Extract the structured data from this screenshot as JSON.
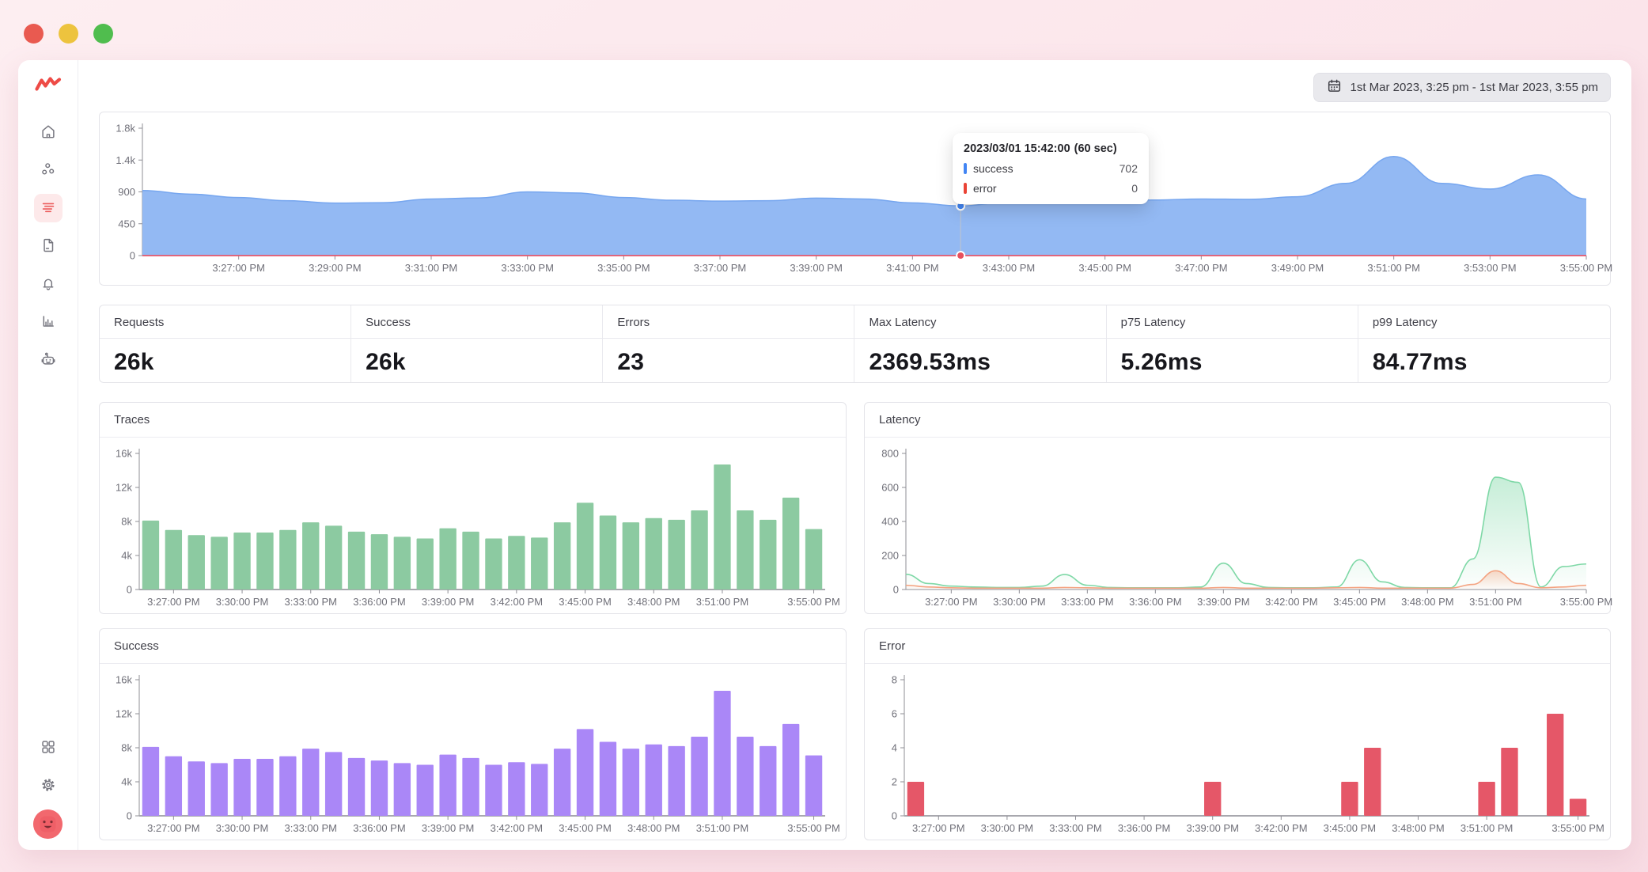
{
  "window_controls": {
    "buttons": [
      "close",
      "minimize",
      "maximize"
    ]
  },
  "topbar": {
    "date_range": "1st Mar 2023, 3:25 pm - 1st Mar 2023, 3:55 pm",
    "calendar_icon": "calendar-icon"
  },
  "sidebar": {
    "logo_icon": "middleware-zigzag-logo",
    "items": [
      {
        "icon": "home-icon",
        "active": false
      },
      {
        "icon": "infrastructure-nodes-icon",
        "active": false
      },
      {
        "icon": "traces-list-icon",
        "active": true
      },
      {
        "icon": "logs-document-icon",
        "active": false
      },
      {
        "icon": "alerts-bell-icon",
        "active": false
      },
      {
        "icon": "reports-bar-chart-icon",
        "active": false
      },
      {
        "icon": "assistant-bot-icon",
        "active": false
      }
    ],
    "bottom": [
      {
        "icon": "apps-grid-icon"
      },
      {
        "icon": "settings-gear-icon"
      },
      {
        "icon": "user-avatar"
      }
    ],
    "accent_color": "#ec5b5b",
    "active_bg": "#fde9ea"
  },
  "tooltip": {
    "title": "2023/03/01 15:42:00",
    "interval": "(60 sec)",
    "rows": [
      {
        "label": "success",
        "value": "702",
        "color": "#4285f4"
      },
      {
        "label": "error",
        "value": "0",
        "color": "#ea4335"
      }
    ]
  },
  "stats": {
    "cells": [
      {
        "label": "Requests",
        "value": "26k"
      },
      {
        "label": "Success",
        "value": "26k"
      },
      {
        "label": "Errors",
        "value": "23"
      },
      {
        "label": "Max Latency",
        "value": "2369.53ms"
      },
      {
        "label": "p75 Latency",
        "value": "5.26ms"
      },
      {
        "label": "p99 Latency",
        "value": "84.77ms"
      }
    ]
  },
  "chart_data": [
    {
      "key": "requests-timeseries",
      "type": "area",
      "interval": "60 sec",
      "x_start": "3:25:00 PM",
      "x_end": "3:55:00 PM",
      "ymax": 1800,
      "yticks": [
        [
          0,
          "0"
        ],
        [
          450,
          "450"
        ],
        [
          900,
          "900"
        ],
        [
          1350,
          "1.4k"
        ],
        [
          1800,
          "1.8k"
        ]
      ],
      "x_ticks": [
        [
          2,
          "3:27:00 PM"
        ],
        [
          4,
          "3:29:00 PM"
        ],
        [
          6,
          "3:31:00 PM"
        ],
        [
          8,
          "3:33:00 PM"
        ],
        [
          10,
          "3:35:00 PM"
        ],
        [
          12,
          "3:37:00 PM"
        ],
        [
          14,
          "3:39:00 PM"
        ],
        [
          16,
          "3:41:00 PM"
        ],
        [
          18,
          "3:43:00 PM"
        ],
        [
          20,
          "3:45:00 PM"
        ],
        [
          22,
          "3:47:00 PM"
        ],
        [
          24,
          "3:49:00 PM"
        ],
        [
          26,
          "3:51:00 PM"
        ],
        [
          28,
          "3:53:00 PM"
        ],
        [
          30,
          "3:55:00 PM"
        ]
      ],
      "series": [
        {
          "name": "success",
          "stroke": "#76a6ef",
          "fill": "#8db5f2",
          "fill_opacity": 0.95,
          "width": 1.5,
          "values": [
            920,
            868,
            820,
            775,
            742,
            748,
            800,
            815,
            900,
            885,
            820,
            782,
            770,
            775,
            812,
            800,
            745,
            702,
            758,
            768,
            778,
            786,
            800,
            795,
            832,
            1020,
            1400,
            1020,
            940,
            1140,
            800
          ]
        },
        {
          "name": "error",
          "stroke": "#e5566b",
          "width": 1.8,
          "values": [
            0,
            0,
            0,
            0,
            0,
            0,
            0,
            0,
            0,
            0,
            0,
            0,
            0,
            0,
            0,
            0,
            0,
            0,
            0,
            0,
            0,
            0,
            0,
            0,
            0,
            0,
            0,
            0,
            0,
            0,
            0
          ]
        }
      ],
      "marker": {
        "index": 17,
        "values": [
          702,
          0
        ],
        "colors": [
          "#4285f4",
          "#e8505e"
        ]
      },
      "ml": 52,
      "mr": 20
    },
    {
      "key": "traces",
      "type": "bar",
      "title": "Traces",
      "color": "#8ccaa1",
      "x_start": "3:26 PM",
      "interval": "1 min",
      "ymax": 16000,
      "yticks": [
        [
          0,
          "0"
        ],
        [
          4000,
          "4k"
        ],
        [
          8000,
          "8k"
        ],
        [
          12000,
          "12k"
        ],
        [
          16000,
          "16k"
        ]
      ],
      "x_ticks": [
        [
          1,
          "3:27:00 PM"
        ],
        [
          4,
          "3:30:00 PM"
        ],
        [
          7,
          "3:33:00 PM"
        ],
        [
          10,
          "3:36:00 PM"
        ],
        [
          13,
          "3:39:00 PM"
        ],
        [
          16,
          "3:42:00 PM"
        ],
        [
          19,
          "3:45:00 PM"
        ],
        [
          22,
          "3:48:00 PM"
        ],
        [
          25,
          "3:51:00 PM"
        ],
        [
          29,
          "3:55:00 PM"
        ]
      ],
      "values": [
        8100,
        7000,
        6400,
        6200,
        6700,
        6700,
        7000,
        7900,
        7500,
        6800,
        6500,
        6200,
        6000,
        7200,
        6800,
        6000,
        6300,
        6100,
        7900,
        10200,
        8700,
        7900,
        8400,
        8200,
        9300,
        14700,
        9300,
        8200,
        10800,
        7100
      ]
    },
    {
      "key": "latency",
      "type": "area",
      "title": "Latency",
      "x_start": "3:25 PM",
      "interval": "1 min",
      "ymax": 800,
      "yticks": [
        [
          0,
          "0"
        ],
        [
          200,
          "200"
        ],
        [
          400,
          "400"
        ],
        [
          600,
          "600"
        ],
        [
          800,
          "800"
        ]
      ],
      "x_ticks": [
        [
          2,
          "3:27:00 PM"
        ],
        [
          5,
          "3:30:00 PM"
        ],
        [
          8,
          "3:33:00 PM"
        ],
        [
          11,
          "3:36:00 PM"
        ],
        [
          14,
          "3:39:00 PM"
        ],
        [
          17,
          "3:42:00 PM"
        ],
        [
          20,
          "3:45:00 PM"
        ],
        [
          23,
          "3:48:00 PM"
        ],
        [
          26,
          "3:51:00 PM"
        ],
        [
          30,
          "3:55:00 PM"
        ]
      ],
      "series": [
        {
          "name": "p99",
          "stroke": "#7ed8a6",
          "fill": "#8ddcb0",
          "fill_opacity": 0.5,
          "gradient": true,
          "width": 1.6,
          "values": [
            90,
            35,
            20,
            15,
            12,
            12,
            20,
            88,
            25,
            12,
            10,
            10,
            10,
            15,
            155,
            35,
            12,
            10,
            10,
            15,
            175,
            45,
            12,
            10,
            10,
            180,
            660,
            630,
            15,
            135,
            150
          ]
        },
        {
          "name": "p75",
          "stroke": "#f4a381",
          "fill": "#f6a986",
          "fill_opacity": 0.45,
          "gradient": true,
          "width": 1.6,
          "values": [
            25,
            15,
            10,
            8,
            8,
            8,
            8,
            12,
            10,
            8,
            8,
            8,
            8,
            8,
            12,
            8,
            8,
            8,
            8,
            10,
            12,
            8,
            8,
            8,
            8,
            30,
            110,
            35,
            10,
            15,
            25
          ]
        }
      ],
      "ml": 48,
      "mr": 18
    },
    {
      "key": "success",
      "type": "bar",
      "title": "Success",
      "color": "#aa87f7",
      "x_start": "3:26 PM",
      "interval": "1 min",
      "ymax": 16000,
      "yticks": [
        [
          0,
          "0"
        ],
        [
          4000,
          "4k"
        ],
        [
          8000,
          "8k"
        ],
        [
          12000,
          "12k"
        ],
        [
          16000,
          "16k"
        ]
      ],
      "x_ticks": [
        [
          1,
          "3:27:00 PM"
        ],
        [
          4,
          "3:30:00 PM"
        ],
        [
          7,
          "3:33:00 PM"
        ],
        [
          10,
          "3:36:00 PM"
        ],
        [
          13,
          "3:39:00 PM"
        ],
        [
          16,
          "3:42:00 PM"
        ],
        [
          19,
          "3:45:00 PM"
        ],
        [
          22,
          "3:48:00 PM"
        ],
        [
          25,
          "3:51:00 PM"
        ],
        [
          29,
          "3:55:00 PM"
        ]
      ],
      "values": [
        8100,
        7000,
        6400,
        6200,
        6700,
        6700,
        7000,
        7900,
        7500,
        6800,
        6500,
        6200,
        6000,
        7200,
        6800,
        6000,
        6300,
        6100,
        7900,
        10200,
        8700,
        7900,
        8400,
        8200,
        9300,
        14700,
        9300,
        8200,
        10800,
        7100
      ]
    },
    {
      "key": "error",
      "type": "bar",
      "title": "Error",
      "color": "#e55768",
      "x_start": "3:26 PM",
      "interval": "1 min",
      "ymax": 8,
      "yticks": [
        [
          0,
          "0"
        ],
        [
          2,
          "2"
        ],
        [
          4,
          "4"
        ],
        [
          6,
          "6"
        ],
        [
          8,
          "8"
        ]
      ],
      "x_ticks": [
        [
          1,
          "3:27:00 PM"
        ],
        [
          4,
          "3:30:00 PM"
        ],
        [
          7,
          "3:33:00 PM"
        ],
        [
          10,
          "3:36:00 PM"
        ],
        [
          13,
          "3:39:00 PM"
        ],
        [
          16,
          "3:42:00 PM"
        ],
        [
          19,
          "3:45:00 PM"
        ],
        [
          22,
          "3:48:00 PM"
        ],
        [
          25,
          "3:51:00 PM"
        ],
        [
          29,
          "3:55:00 PM"
        ]
      ],
      "values": [
        2,
        0,
        0,
        0,
        0,
        0,
        0,
        0,
        0,
        0,
        0,
        0,
        0,
        2,
        0,
        0,
        0,
        0,
        0,
        2,
        4,
        0,
        0,
        0,
        0,
        2,
        4,
        0,
        6,
        1
      ]
    }
  ]
}
